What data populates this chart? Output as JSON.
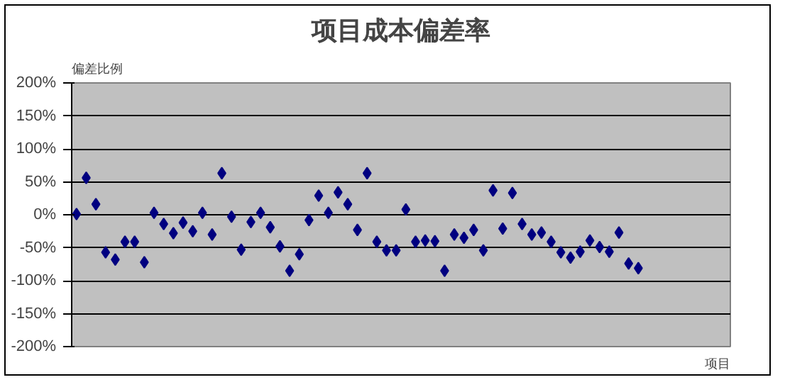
{
  "chart_data": {
    "type": "scatter",
    "title": "项目成本偏差率",
    "ylabel": "偏差比例",
    "xlabel": "项目",
    "categories": [
      null,
      null,
      null,
      null,
      null,
      null,
      null,
      null,
      null,
      null,
      null,
      null,
      null,
      null,
      null,
      null,
      null,
      null,
      null,
      null,
      null,
      null,
      null,
      null,
      null,
      null,
      null,
      null,
      null,
      null,
      null,
      null,
      null,
      null,
      null,
      null,
      null,
      null,
      null,
      null,
      null,
      null,
      null,
      null,
      null,
      null,
      null,
      null,
      null,
      null,
      null,
      null,
      null,
      null,
      null,
      null,
      null,
      null,
      null,
      null,
      null,
      null,
      null,
      null,
      null,
      null,
      null,
      null
    ],
    "values": [
      1,
      56,
      16,
      -57,
      -68,
      -41,
      -41,
      -72,
      3,
      -14,
      -28,
      -12,
      -25,
      3,
      -30,
      63,
      -3,
      -53,
      -11,
      3,
      -19,
      -48,
      -85,
      -60,
      -8,
      29,
      3,
      34,
      16,
      -23,
      63,
      -41,
      -54,
      -54,
      8,
      -41,
      -39,
      -40,
      -85,
      -30,
      -35,
      -23,
      -54,
      37,
      -21,
      33,
      -14,
      -30,
      -27,
      -41,
      -57,
      -65,
      -56,
      -39,
      -49,
      -56,
      -27,
      -74,
      -81,
      null,
      null,
      null,
      null,
      null,
      null,
      null,
      null,
      null
    ],
    "color": "#000080",
    "marker": "diamond",
    "grid": "y",
    "tick_labels": "y",
    "ylim": [
      -200,
      200
    ],
    "yticks": [
      {
        "value": -200,
        "label": "-200%"
      },
      {
        "value": -150,
        "label": "-150%"
      },
      {
        "value": -100,
        "label": "-100%"
      },
      {
        "value": -50,
        "label": "-50%"
      },
      {
        "value": 0,
        "label": "0%"
      },
      {
        "value": 50,
        "label": "50%"
      },
      {
        "value": 100,
        "label": "100%"
      },
      {
        "value": 150,
        "label": "150%"
      },
      {
        "value": 200,
        "label": "200%"
      }
    ]
  }
}
